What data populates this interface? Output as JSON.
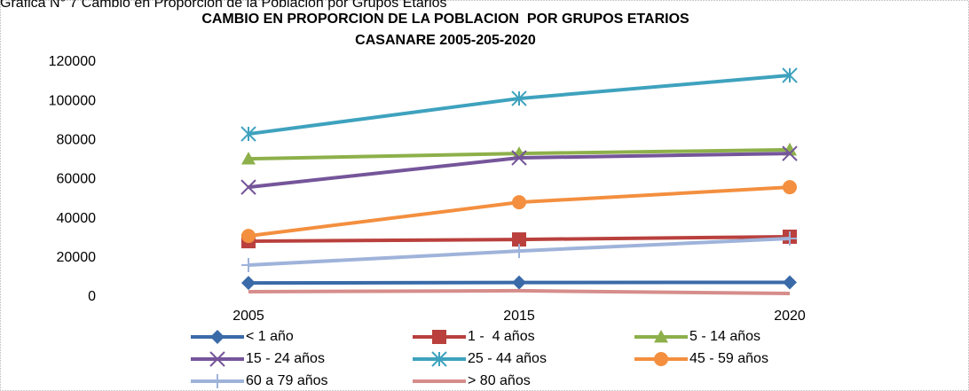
{
  "caption": "Gráfica N° 7 Cambio en Proporción de la Población por Grupos Etarios",
  "chart_data": {
    "type": "line",
    "title": [
      "CAMBIO EN PROPORCION DE LA POBLACION  POR GRUPOS ETARIOS",
      "CASANARE 2005-205-2020"
    ],
    "categories": [
      "2005",
      "2015",
      "2020"
    ],
    "ylim": [
      0,
      120000
    ],
    "yticks": [
      0,
      20000,
      40000,
      60000,
      80000,
      100000,
      120000
    ],
    "grid": false,
    "legend": "bottom",
    "series": [
      {
        "name": "< 1 año",
        "color": "#3a6aa8",
        "marker": "diamond",
        "values": [
          7200,
          7400,
          7500
        ]
      },
      {
        "name": "1 -  4 años",
        "color": "#b9403d",
        "marker": "square",
        "values": [
          28500,
          29400,
          30800
        ]
      },
      {
        "name": "5 - 14 años",
        "color": "#8db04a",
        "marker": "triangle",
        "values": [
          70600,
          73300,
          75200
        ]
      },
      {
        "name": "15 - 24 años",
        "color": "#75559a",
        "marker": "x",
        "values": [
          56100,
          71100,
          73300
        ]
      },
      {
        "name": "25 - 44 años",
        "color": "#3ea2be",
        "marker": "star",
        "values": [
          83300,
          101400,
          113200
        ]
      },
      {
        "name": "45 - 59 años",
        "color": "#f38f3f",
        "marker": "circle",
        "values": [
          31200,
          48400,
          56100
        ]
      },
      {
        "name": "60 a 79 años",
        "color": "#9fb3da",
        "marker": "plus",
        "values": [
          16300,
          23500,
          29900
        ]
      },
      {
        "name": "> 80 años",
        "color": "#d68d8b",
        "marker": "none",
        "values": [
          2700,
          3200,
          1800
        ]
      }
    ]
  }
}
